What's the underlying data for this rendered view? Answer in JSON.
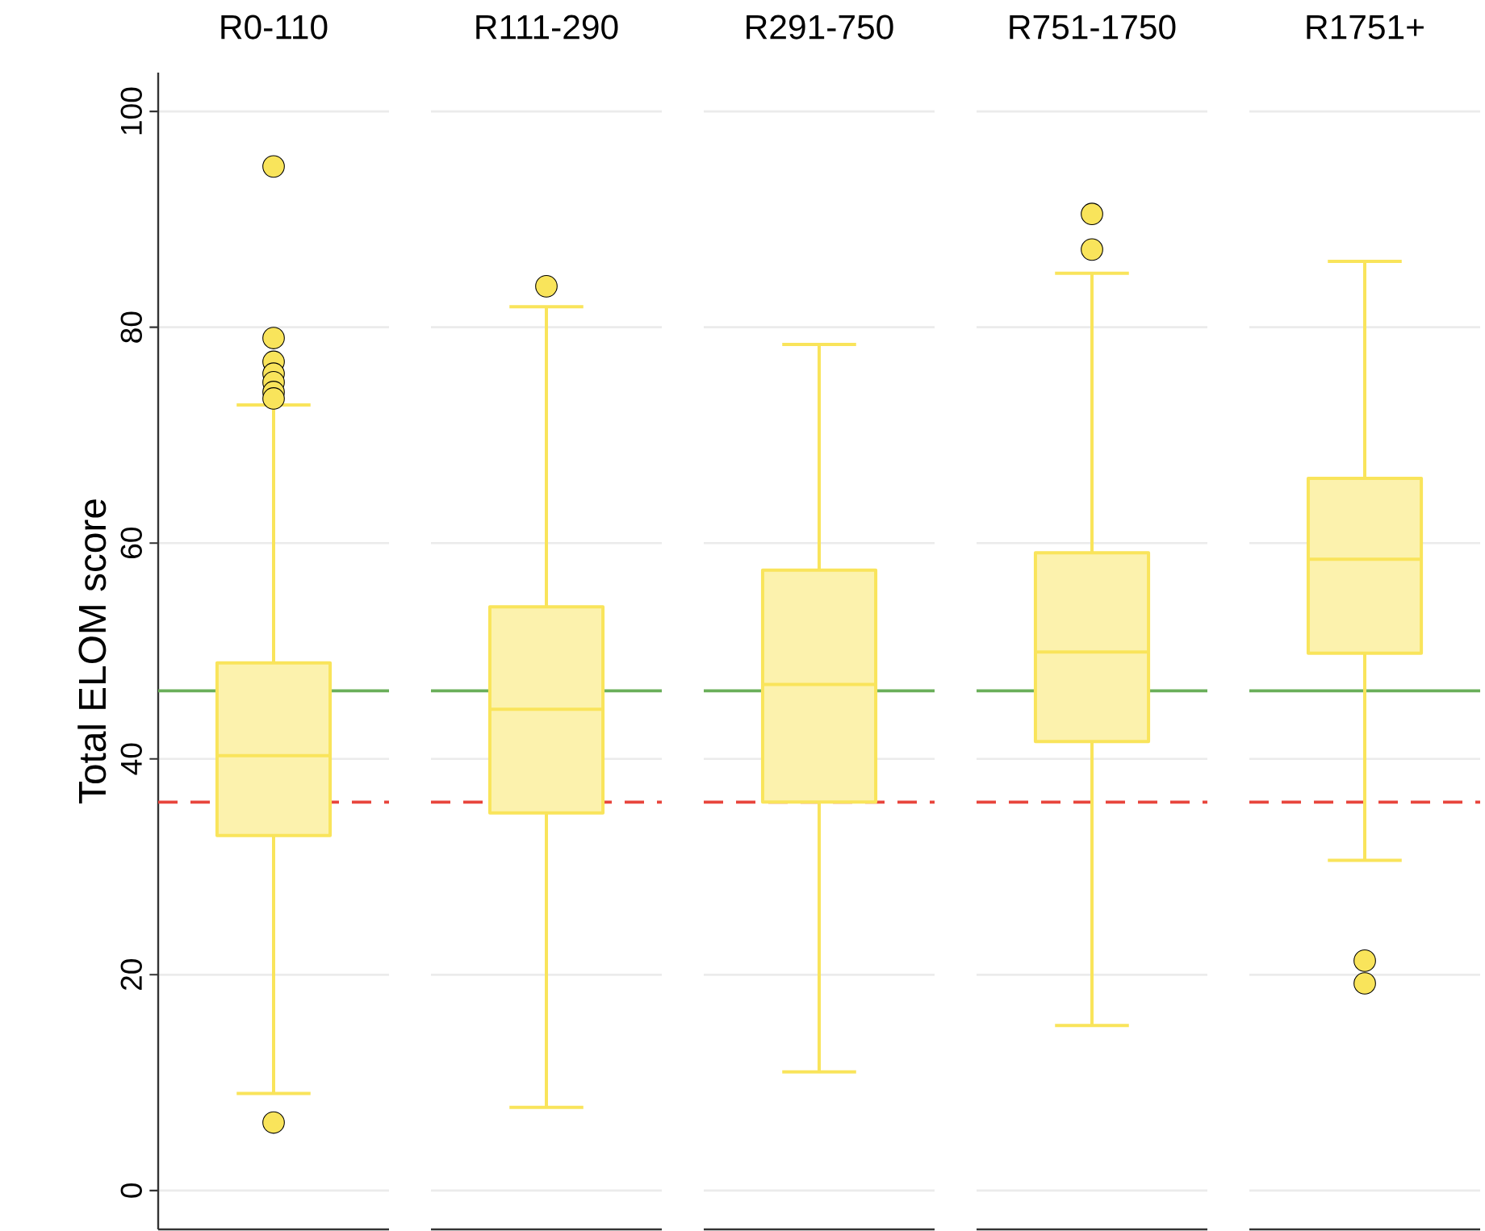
{
  "chart_data": {
    "type": "box",
    "ylabel": "Total ELOM score",
    "categories": [
      "R0-110",
      "R111-290",
      "R291-750",
      "R751-1750",
      "R1751+"
    ],
    "color": "#f9e45b",
    "boxes": [
      {
        "low": 9.0,
        "q1": 32.9,
        "median": 40.3,
        "q3": 48.9,
        "high": 72.8,
        "outliers": [
          94.9,
          79.0,
          76.8,
          75.7,
          74.9,
          74.0,
          73.4,
          6.3
        ]
      },
      {
        "low": 7.7,
        "q1": 35.0,
        "median": 44.6,
        "q3": 54.1,
        "high": 81.9,
        "outliers": [
          83.8
        ]
      },
      {
        "low": 11.0,
        "q1": 36.0,
        "median": 46.9,
        "q3": 57.5,
        "high": 78.4
      },
      {
        "low": 15.3,
        "q1": 41.6,
        "median": 49.9,
        "q3": 59.1,
        "high": 85.0,
        "outliers": [
          90.5,
          87.2
        ]
      },
      {
        "low": 30.6,
        "q1": 49.8,
        "median": 58.5,
        "q3": 66.0,
        "high": 86.1,
        "outliers": [
          21.3,
          19.2
        ]
      }
    ],
    "ref_lines": [
      {
        "axis": "y",
        "value": 46.3,
        "color": "#6aaf5a",
        "line_style": "solid"
      },
      {
        "axis": "y",
        "value": 36.0,
        "color": "#e8453c",
        "line_style": "dashed"
      }
    ],
    "ylim": [
      -3.6,
      103.6
    ],
    "yticks": [
      0,
      20,
      40,
      60,
      80,
      100
    ],
    "grid": "y",
    "tick_labels": "y"
  }
}
